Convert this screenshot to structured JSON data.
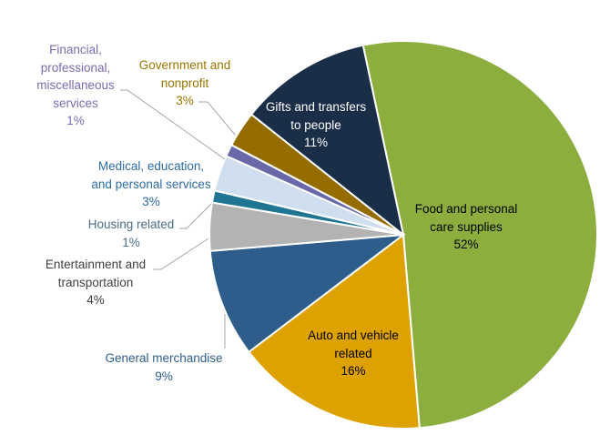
{
  "chart_data": {
    "type": "pie",
    "start_angle_deg": -12,
    "direction": "clockwise",
    "slices": [
      {
        "name": "Food and personal care supplies",
        "label_lines": [
          "Food and personal",
          "care supplies"
        ],
        "value": 52,
        "pct_label": "52%",
        "color": "#8BAE3F",
        "label_color": "#000000"
      },
      {
        "name": "Auto and vehicle related",
        "label_lines": [
          "Auto and vehicle",
          "related"
        ],
        "value": 16,
        "pct_label": "16%",
        "color": "#DDA200",
        "label_color": "#000000"
      },
      {
        "name": "General merchandise",
        "label_lines": [
          "General merchandise"
        ],
        "value": 9,
        "pct_label": "9%",
        "color": "#2E5D8B",
        "label_color": "#2E5D8B"
      },
      {
        "name": "Entertainment and transportation",
        "label_lines": [
          "Entertainment  and",
          "transportation"
        ],
        "value": 4,
        "pct_label": "4%",
        "color": "#B3B3B3",
        "label_color": "#404040"
      },
      {
        "name": "Housing related",
        "label_lines": [
          "Housing related"
        ],
        "value": 1,
        "pct_label": "1%",
        "color": "#1F7592",
        "label_color": "#4A6E88"
      },
      {
        "name": "Medical, education, and personal services",
        "label_lines": [
          "Medical, education,",
          "and personal services"
        ],
        "value": 3,
        "pct_label": "3%",
        "color": "#CFDFEF",
        "label_color": "#2E6DA4"
      },
      {
        "name": "Financial, professional, miscellaneous services",
        "label_lines": [
          "Financial,",
          "professional,",
          "miscellaneous",
          "services"
        ],
        "value": 1,
        "pct_label": "1%",
        "color": "#6B68AA",
        "label_color": "#7A6CB0"
      },
      {
        "name": "Government and nonprofit",
        "label_lines": [
          "Government  and",
          "nonprofit"
        ],
        "value": 3,
        "pct_label": "3%",
        "color": "#946C00",
        "label_color": "#9A7400"
      },
      {
        "name": "Gifts and transfers to people",
        "label_lines": [
          "Gifts and transfers",
          "to people"
        ],
        "value": 11,
        "pct_label": "11%",
        "color": "#1A2E48",
        "label_color": "#FFFFFF"
      }
    ],
    "legend": "none"
  }
}
